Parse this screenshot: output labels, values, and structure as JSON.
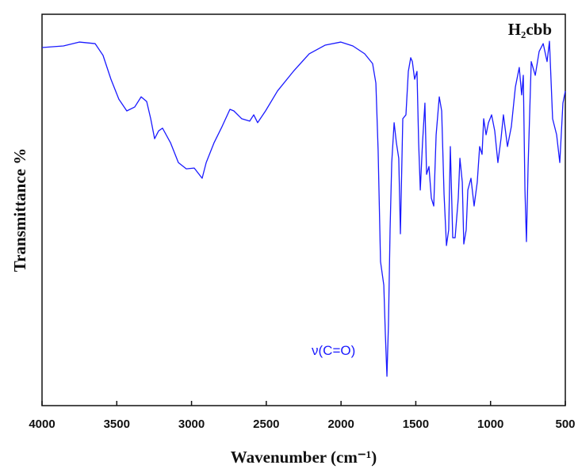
{
  "chart_data": {
    "type": "line",
    "title": "H₂cbb",
    "x_label": "Wavenumber (cm⁻¹)",
    "y_label": "Transmittance %",
    "annotation": "ν(C=O)",
    "xlim": [
      4000,
      500
    ],
    "xticks": [
      4000,
      3500,
      3000,
      2500,
      2000,
      1500,
      1000,
      500
    ],
    "ylim": [
      0,
      100
    ],
    "series": [
      {
        "color": "#1a1aff",
        "x": [
          4000,
          3857,
          3751,
          3645,
          3592,
          3539,
          3486,
          3433,
          3380,
          3337,
          3300,
          3273,
          3247,
          3220,
          3194,
          3141,
          3088,
          3035,
          2982,
          2929,
          2902,
          2849,
          2796,
          2743,
          2717,
          2664,
          2611,
          2584,
          2558,
          2505,
          2425,
          2319,
          2213,
          2107,
          2001,
          1921,
          1842,
          1789,
          1767,
          1752,
          1736,
          1714,
          1704,
          1693,
          1683,
          1672,
          1661,
          1645,
          1630,
          1614,
          1603,
          1587,
          1566,
          1550,
          1534,
          1523,
          1508,
          1492,
          1481,
          1470,
          1455,
          1439,
          1428,
          1412,
          1396,
          1380,
          1364,
          1343,
          1327,
          1311,
          1295,
          1280,
          1269,
          1253,
          1237,
          1216,
          1205,
          1189,
          1179,
          1163,
          1152,
          1131,
          1110,
          1089,
          1073,
          1057,
          1046,
          1030,
          1014,
          993,
          972,
          951,
          930,
          914,
          887,
          861,
          834,
          808,
          792,
          781,
          770,
          760,
          749,
          728,
          701,
          675,
          648,
          622,
          606,
          585,
          558,
          537,
          516,
          500
        ],
        "values": [
          91.5,
          91.9,
          92.9,
          92.5,
          89.5,
          83.4,
          78.3,
          75.3,
          76.3,
          78.9,
          77.7,
          73.3,
          68.2,
          70.2,
          70.9,
          67.2,
          62.1,
          60.5,
          60.7,
          58.1,
          62.1,
          67.2,
          71.3,
          75.7,
          75.3,
          73.3,
          72.7,
          74.3,
          72.3,
          75.3,
          80.4,
          85.4,
          89.9,
          92.1,
          92.9,
          91.9,
          89.9,
          87.4,
          82.4,
          65.2,
          36.8,
          30.8,
          18.6,
          7.5,
          20.6,
          44.9,
          62.1,
          72.3,
          67.2,
          63.2,
          43.9,
          73.3,
          74.3,
          85.4,
          88.9,
          87.9,
          83.4,
          85.4,
          67.2,
          55.1,
          67.2,
          77.3,
          59.1,
          61.1,
          53.0,
          51.0,
          69.2,
          78.9,
          75.3,
          54.0,
          40.9,
          44.9,
          66.2,
          42.9,
          42.9,
          53.0,
          63.2,
          57.1,
          41.3,
          44.9,
          55.1,
          58.1,
          51.0,
          57.1,
          66.2,
          64.2,
          73.3,
          69.2,
          72.3,
          74.3,
          70.2,
          62.1,
          68.2,
          74.3,
          66.2,
          71.3,
          81.4,
          86.4,
          79.4,
          84.4,
          55.1,
          41.9,
          61.1,
          87.9,
          84.4,
          90.5,
          92.5,
          87.9,
          93.1,
          73.3,
          69.2,
          62.1,
          77.3,
          80.4
        ]
      }
    ]
  }
}
